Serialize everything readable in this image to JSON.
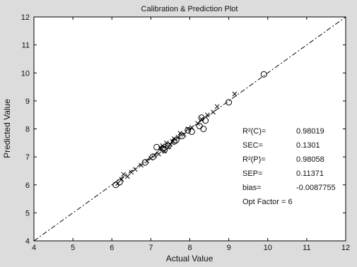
{
  "chart_data": {
    "type": "scatter",
    "title": "Calibration & Prediction Plot",
    "xlabel": "Actual Value",
    "ylabel": "Predicted Value",
    "xlim": [
      4,
      12
    ],
    "ylim": [
      4,
      12
    ],
    "xticks": [
      "4",
      "5",
      "6",
      "7",
      "8",
      "9",
      "10",
      "11",
      "12"
    ],
    "yticks": [
      "4",
      "5",
      "6",
      "7",
      "8",
      "9",
      "10",
      "11",
      "12"
    ],
    "grid": false,
    "reference_line": {
      "x": [
        4,
        12
      ],
      "y": [
        4,
        12
      ],
      "style": "dash-dot"
    },
    "series": [
      {
        "marker": "x",
        "points": [
          [
            6.15,
            6.05
          ],
          [
            6.25,
            6.2
          ],
          [
            6.3,
            6.38
          ],
          [
            6.4,
            6.3
          ],
          [
            6.5,
            6.45
          ],
          [
            6.6,
            6.55
          ],
          [
            6.75,
            6.7
          ],
          [
            6.9,
            6.85
          ],
          [
            7.0,
            6.95
          ],
          [
            7.1,
            7.05
          ],
          [
            7.2,
            7.1
          ],
          [
            7.25,
            7.3
          ],
          [
            7.3,
            7.4
          ],
          [
            7.35,
            7.2
          ],
          [
            7.4,
            7.5
          ],
          [
            7.45,
            7.35
          ],
          [
            7.5,
            7.45
          ],
          [
            7.55,
            7.55
          ],
          [
            7.6,
            7.65
          ],
          [
            7.7,
            7.7
          ],
          [
            7.75,
            7.85
          ],
          [
            7.85,
            7.8
          ],
          [
            7.95,
            8.0
          ],
          [
            8.05,
            8.05
          ],
          [
            8.2,
            8.2
          ],
          [
            8.3,
            8.35
          ],
          [
            8.45,
            8.5
          ],
          [
            8.6,
            8.6
          ],
          [
            8.7,
            8.8
          ],
          [
            9.15,
            9.25
          ]
        ]
      },
      {
        "marker": "o",
        "points": [
          [
            6.1,
            6.0
          ],
          [
            6.2,
            6.1
          ],
          [
            6.85,
            6.8
          ],
          [
            7.05,
            7.0
          ],
          [
            7.15,
            7.35
          ],
          [
            7.3,
            7.3
          ],
          [
            7.35,
            7.25
          ],
          [
            7.45,
            7.4
          ],
          [
            7.6,
            7.55
          ],
          [
            7.65,
            7.6
          ],
          [
            7.8,
            7.75
          ],
          [
            7.95,
            7.95
          ],
          [
            8.05,
            7.9
          ],
          [
            8.25,
            8.1
          ],
          [
            8.3,
            8.4
          ],
          [
            8.35,
            8.0
          ],
          [
            8.4,
            8.3
          ],
          [
            9.0,
            8.95
          ],
          [
            9.9,
            9.95
          ]
        ]
      }
    ],
    "annotation": {
      "rows": [
        {
          "label": "R²(C)=",
          "value": "0.98019"
        },
        {
          "label": "SEC=",
          "value": "0.1301"
        },
        {
          "label": "R²(P)=",
          "value": "0.98058"
        },
        {
          "label": "SEP=",
          "value": "0.11371"
        },
        {
          "label": "bias=",
          "value": "-0.0087755"
        }
      ],
      "footer": "Opt  Factor = 6"
    }
  }
}
